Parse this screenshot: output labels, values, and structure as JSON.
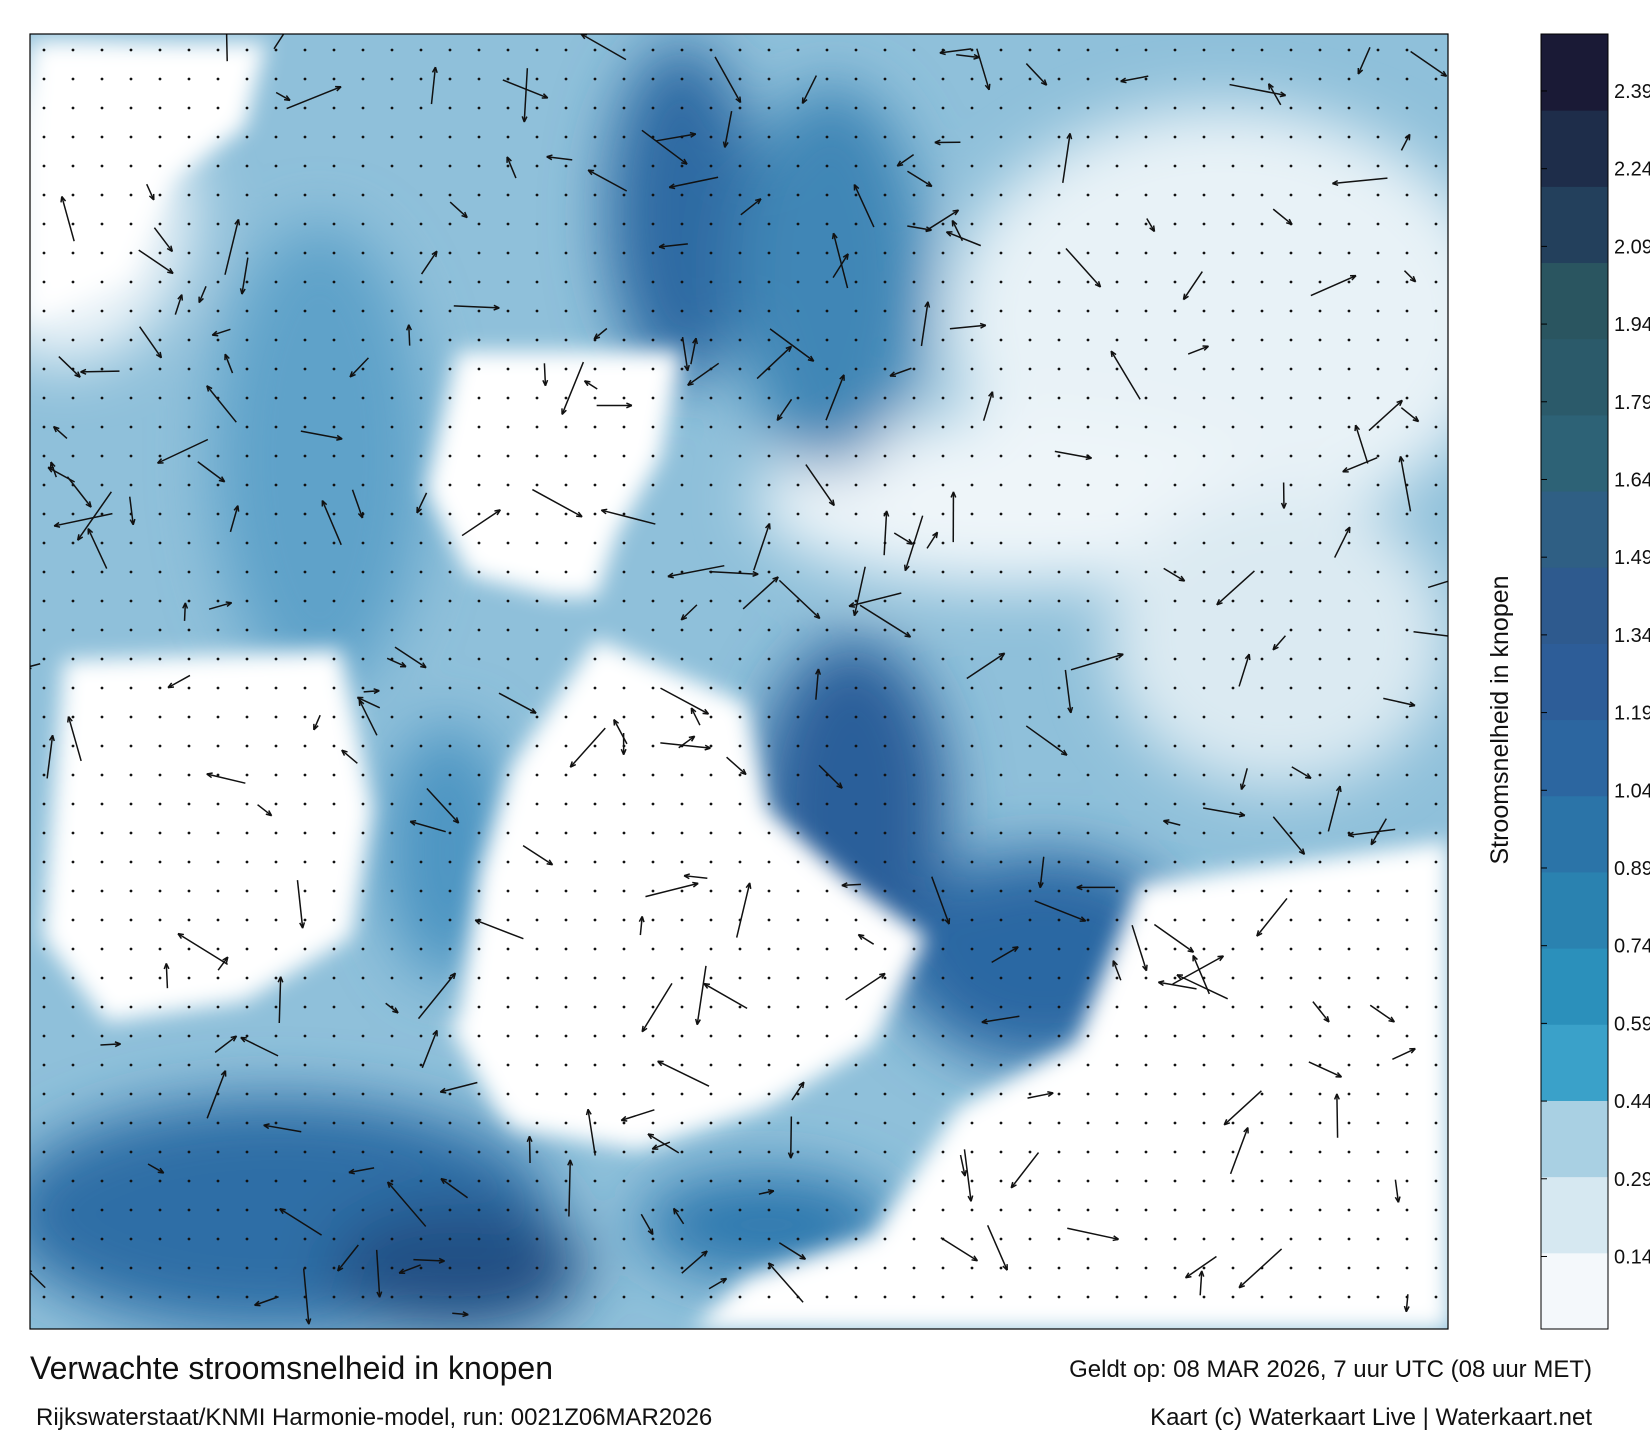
{
  "map": {
    "title": "Verwachte stroomsnelheid in knopen",
    "valid_time": "Geldt op: 08 MAR 2026, 7 uur UTC (08 uur MET)",
    "model": "Rijkswaterstaat/KNMI Harmonie-model, run: 0021Z06MAR2026",
    "credit": "Kaart (c) Waterkaart Live | Waterkaart.net"
  },
  "colorbar": {
    "label": "Stroomsnelheid in knopen",
    "lim": [
      0,
      2.5
    ],
    "ticks": [
      0.14,
      0.29,
      0.44,
      0.59,
      0.74,
      0.89,
      1.04,
      1.19,
      1.34,
      1.49,
      1.64,
      1.79,
      1.94,
      2.09,
      2.24,
      2.39
    ],
    "colors": [
      "#f4f8fb",
      "#d6e8f1",
      "#a9d0e3",
      "#3aa1c9",
      "#2b90bb",
      "#2a82b0",
      "#2b74a8",
      "#2c66a0",
      "#2d5d98",
      "#2e5a8e",
      "#2f5f84",
      "#2d6276",
      "#2b5a6a",
      "#2a5560",
      "#23405c",
      "#1e2d4a",
      "#1a1a36"
    ]
  }
}
